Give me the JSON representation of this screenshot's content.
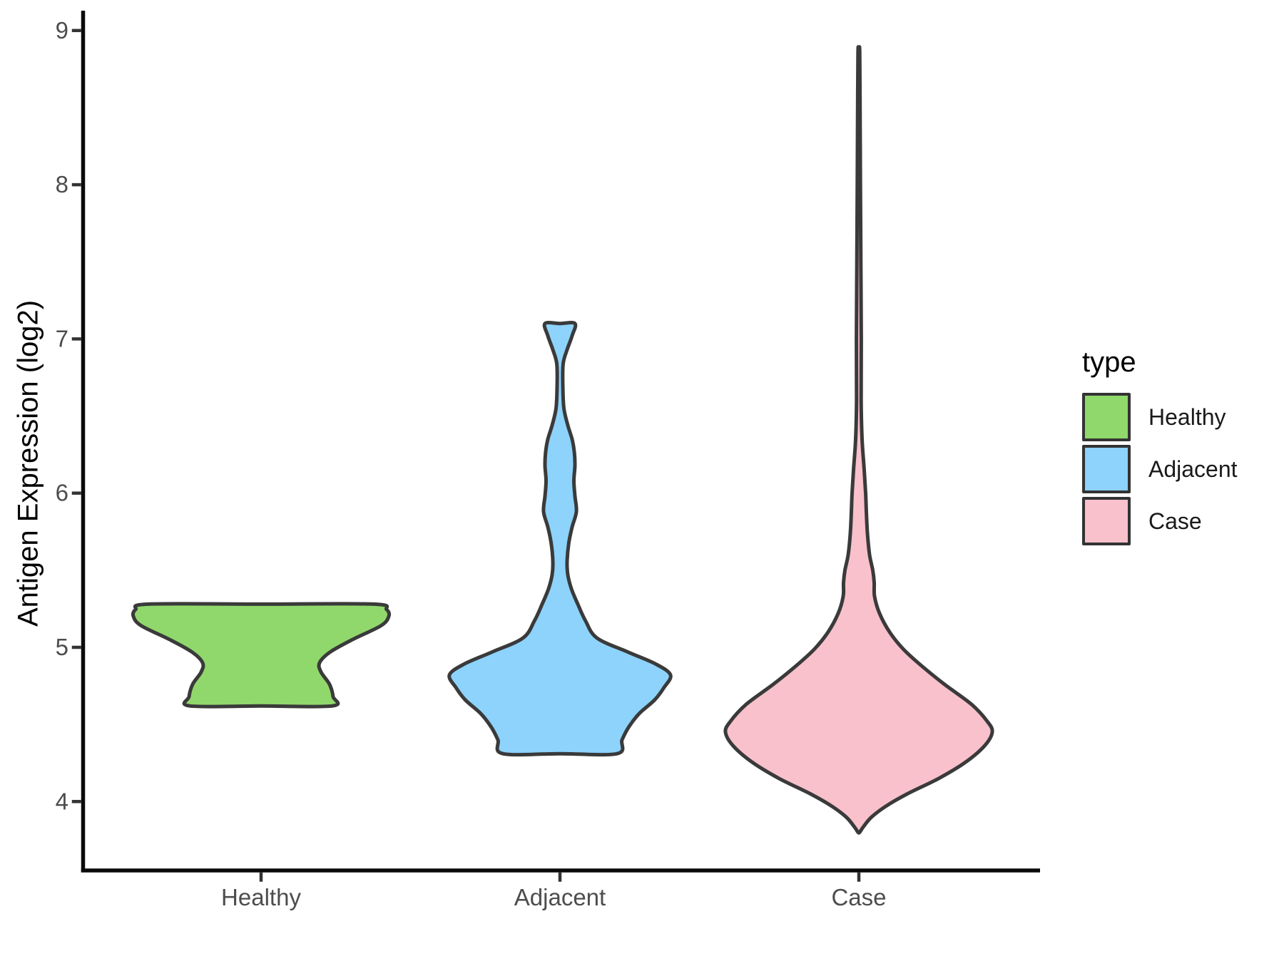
{
  "chart_data": {
    "type": "violin",
    "title": "",
    "xlabel": "",
    "ylabel": "Antigen Expression (log2)",
    "x_categories": [
      "Healthy",
      "Adjacent",
      "Case"
    ],
    "y_ticks": [
      "9",
      "8",
      "7",
      "6",
      "5",
      "4"
    ],
    "y_tick_values": [
      9,
      8,
      7,
      6,
      5,
      4
    ],
    "y_range_shown": [
      3.6,
      9.1
    ],
    "grid": false,
    "axis_color": "#0a0a0a",
    "tick_color": "#333333",
    "tick_label_color": "#4d4d4d",
    "outline_color": "#3a3a3a",
    "legend": {
      "title": "type",
      "position": "right",
      "entries": [
        {
          "label": "Healthy",
          "color": "#90D86C"
        },
        {
          "label": "Adjacent",
          "color": "#8DD3FC"
        },
        {
          "label": "Case",
          "color": "#F8C1CC"
        }
      ]
    },
    "series": [
      {
        "name": "Healthy",
        "color": "#90D86C",
        "value_min": 4.62,
        "value_max": 5.28,
        "profile": [
          [
            5.28,
            158
          ],
          [
            5.245,
            176
          ],
          [
            5.2,
            179
          ],
          [
            5.14,
            168
          ],
          [
            5.05,
            128
          ],
          [
            4.97,
            97
          ],
          [
            4.9,
            82
          ],
          [
            4.84,
            84
          ],
          [
            4.76,
            96
          ],
          [
            4.68,
            101
          ],
          [
            4.62,
            100
          ]
        ]
      },
      {
        "name": "Adjacent",
        "color": "#8DD3FC",
        "value_min": 4.31,
        "value_max": 7.1,
        "profile": [
          [
            7.1,
            21
          ],
          [
            7.02,
            17
          ],
          [
            6.93,
            10
          ],
          [
            6.84,
            4.5
          ],
          [
            6.7,
            4
          ],
          [
            6.55,
            5.5
          ],
          [
            6.44,
            11
          ],
          [
            6.35,
            17
          ],
          [
            6.27,
            20
          ],
          [
            6.18,
            21
          ],
          [
            6.08,
            19.5
          ],
          [
            5.98,
            21
          ],
          [
            5.88,
            23
          ],
          [
            5.78,
            17
          ],
          [
            5.68,
            12.5
          ],
          [
            5.56,
            10
          ],
          [
            5.47,
            11
          ],
          [
            5.38,
            16
          ],
          [
            5.28,
            25
          ],
          [
            5.17,
            36
          ],
          [
            5.06,
            52
          ],
          [
            4.97,
            95
          ],
          [
            4.89,
            135
          ],
          [
            4.82,
            155
          ],
          [
            4.74,
            146
          ],
          [
            4.66,
            133
          ],
          [
            4.57,
            111
          ],
          [
            4.48,
            96
          ],
          [
            4.4,
            87
          ],
          [
            4.31,
            80
          ]
        ]
      },
      {
        "name": "Case",
        "color": "#F8C1CC",
        "value_min": 3.8,
        "value_max": 8.86,
        "profile": [
          [
            8.86,
            1.2
          ],
          [
            8.4,
            1.8
          ],
          [
            8.0,
            2.2
          ],
          [
            7.5,
            2.8
          ],
          [
            7.0,
            3.4
          ],
          [
            6.6,
            3.2
          ],
          [
            6.35,
            4.5
          ],
          [
            6.15,
            7.5
          ],
          [
            6.0,
            9.5
          ],
          [
            5.88,
            10.5
          ],
          [
            5.74,
            12
          ],
          [
            5.6,
            15
          ],
          [
            5.5,
            19.5
          ],
          [
            5.42,
            21.5
          ],
          [
            5.33,
            22
          ],
          [
            5.22,
            29
          ],
          [
            5.1,
            43
          ],
          [
            4.99,
            62
          ],
          [
            4.88,
            88
          ],
          [
            4.76,
            120
          ],
          [
            4.63,
            158
          ],
          [
            4.52,
            180
          ],
          [
            4.45,
            187
          ],
          [
            4.36,
            176
          ],
          [
            4.25,
            148
          ],
          [
            4.15,
            112
          ],
          [
            4.05,
            68
          ],
          [
            3.97,
            38
          ],
          [
            3.9,
            18
          ],
          [
            3.84,
            7
          ],
          [
            3.8,
            1
          ]
        ]
      }
    ]
  }
}
